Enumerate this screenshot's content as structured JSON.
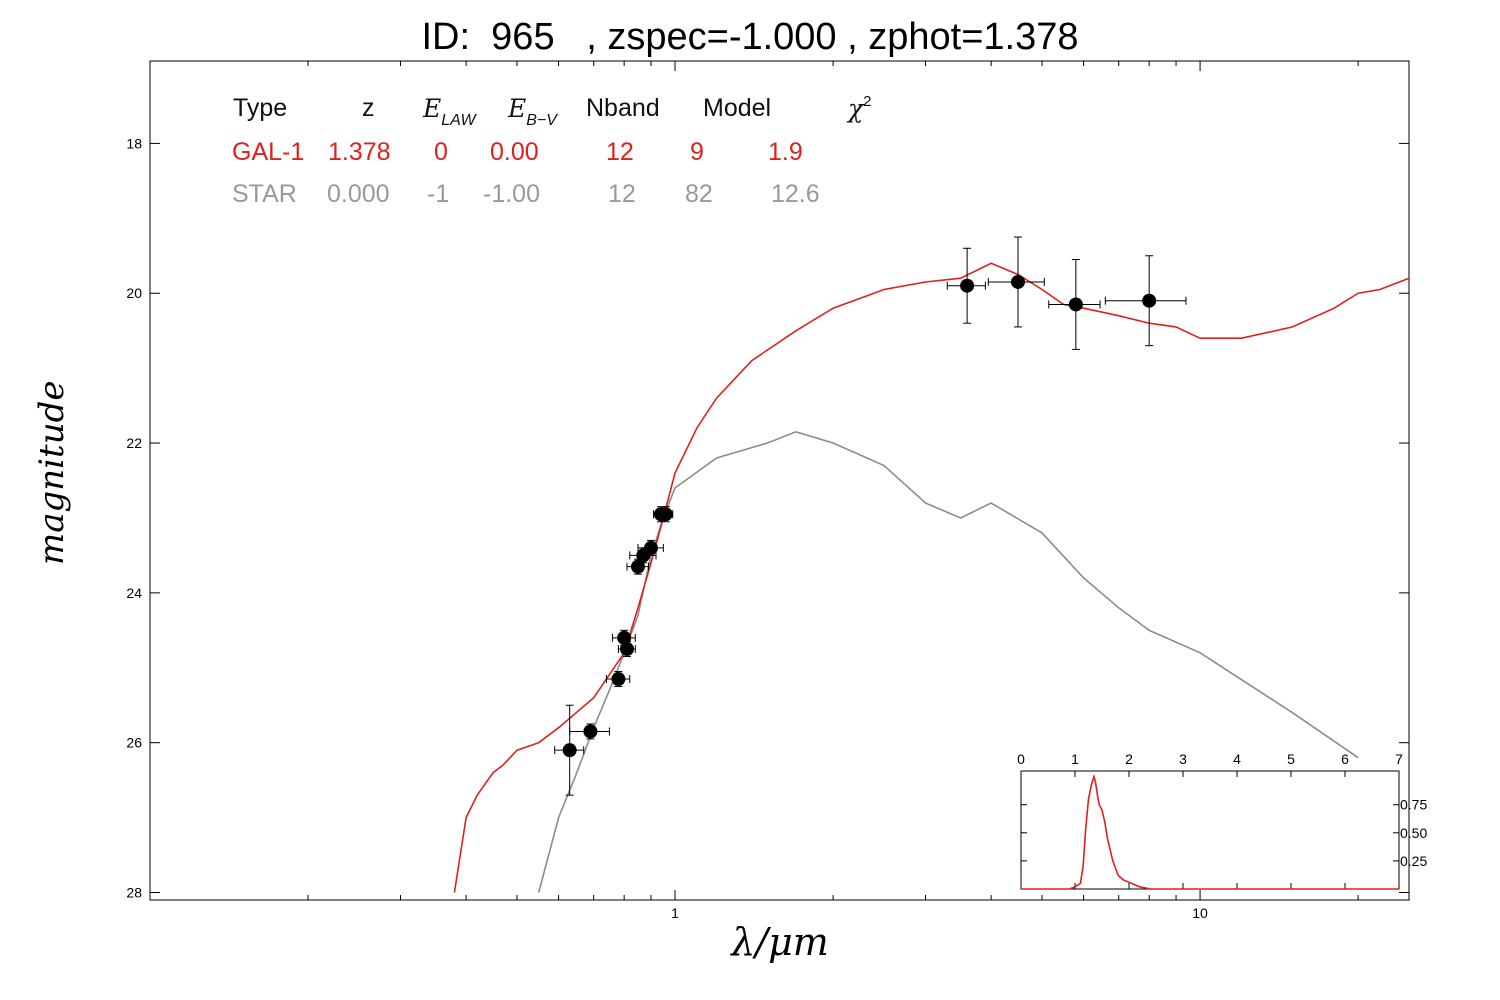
{
  "title": "ID:  965   , zspec=-1.000 , zphot=1.378",
  "table": {
    "headers": {
      "type": "Type",
      "z": "z",
      "elaw_main": "E",
      "elaw_sub": "LAW",
      "ebv_main": "E",
      "ebv_sub": "B−V",
      "nband": "Nband",
      "model": "Model",
      "chi_main": "χ",
      "chi_sup": "2"
    },
    "rows": [
      {
        "type": "GAL-1",
        "z": "1.378",
        "elaw": "0",
        "ebv": "0.00",
        "nband": "12",
        "model": "9",
        "chi2": "1.9"
      },
      {
        "type": "STAR",
        "z": "0.000",
        "elaw": "-1",
        "ebv": "-1.00",
        "nband": "12",
        "model": "82",
        "chi2": "12.6"
      }
    ]
  },
  "axes": {
    "ylabel": "magnitude",
    "xlabel": "λ/μm"
  },
  "colors": {
    "galaxy": "#e0201c",
    "star": "#8c8c8c",
    "points": "#000000"
  },
  "chart_data": [
    {
      "type": "line",
      "title": "ID:  965   , zspec=-1.000 , zphot=1.378",
      "xlabel": "λ/μm",
      "ylabel": "magnitude",
      "xscale": "log",
      "xlim": [
        0.1,
        25
      ],
      "ylim": [
        28.1,
        16.9
      ],
      "y_inverted": true,
      "xticks": [
        1,
        10
      ],
      "xtick_labels": [
        "1",
        "10"
      ],
      "yticks": [
        18,
        20,
        22,
        24,
        26,
        28
      ],
      "ytick_labels": [
        "18",
        "20",
        "22",
        "24",
        "26",
        "28"
      ],
      "series": [
        {
          "name": "GAL-1",
          "x": [
            0.38,
            0.4,
            0.42,
            0.45,
            0.47,
            0.5,
            0.55,
            0.6,
            0.7,
            0.8,
            0.85,
            0.9,
            0.95,
            1.0,
            1.1,
            1.2,
            1.4,
            1.7,
            2.0,
            2.5,
            3.0,
            3.5,
            4.0,
            4.5,
            5.0,
            5.5,
            6.0,
            7.0,
            8.0,
            9.0,
            10.0,
            12.0,
            15.0,
            18.0,
            20.0,
            22.0,
            25.0
          ],
          "y": [
            28.0,
            27.0,
            26.7,
            26.4,
            26.3,
            26.1,
            26.0,
            25.8,
            25.4,
            24.8,
            24.2,
            23.6,
            23.0,
            22.4,
            21.8,
            21.4,
            20.9,
            20.5,
            20.2,
            19.95,
            19.85,
            19.8,
            19.6,
            19.75,
            19.95,
            20.15,
            20.2,
            20.3,
            20.4,
            20.45,
            20.6,
            20.6,
            20.45,
            20.2,
            20.0,
            19.95,
            19.8
          ]
        },
        {
          "name": "STAR",
          "x": [
            0.55,
            0.6,
            0.65,
            0.7,
            0.75,
            0.8,
            0.85,
            0.9,
            0.95,
            1.0,
            1.2,
            1.5,
            1.7,
            2.0,
            2.5,
            3.0,
            3.5,
            4.0,
            5.0,
            6.0,
            7.0,
            8.0,
            10.0,
            15.0,
            20.0
          ],
          "y": [
            28.0,
            27.0,
            26.4,
            25.8,
            25.3,
            24.8,
            24.3,
            23.5,
            23.0,
            22.6,
            22.2,
            22.0,
            21.85,
            22.0,
            22.3,
            22.8,
            23.0,
            22.8,
            23.2,
            23.8,
            24.2,
            24.5,
            24.8,
            25.6,
            26.2
          ]
        }
      ],
      "points": {
        "x": [
          0.63,
          0.69,
          0.78,
          0.8,
          0.81,
          0.85,
          0.87,
          0.9,
          0.94,
          0.96,
          3.6,
          4.5,
          5.8,
          8.0
        ],
        "y": [
          26.1,
          25.85,
          25.15,
          24.6,
          24.75,
          23.65,
          23.5,
          23.4,
          22.95,
          22.95,
          19.9,
          19.85,
          20.15,
          20.1
        ],
        "xerr": [
          0.04,
          0.06,
          0.04,
          0.04,
          0.03,
          0.04,
          0.05,
          0.05,
          0.03,
          0.03,
          0.3,
          0.55,
          0.65,
          1.4
        ],
        "yerr": [
          0.6,
          0.1,
          0.1,
          0.1,
          0.1,
          0.1,
          0.1,
          0.1,
          0.1,
          0.1,
          0.5,
          0.6,
          0.6,
          0.6
        ]
      }
    },
    {
      "type": "line",
      "title": "",
      "xlim": [
        0,
        7
      ],
      "ylim": [
        0,
        1.05
      ],
      "xticks": [
        0,
        1,
        2,
        3,
        4,
        5,
        6,
        7
      ],
      "xtick_labels": [
        "0",
        "1",
        "2",
        "3",
        "4",
        "5",
        "6",
        "7"
      ],
      "yticks": [
        0.25,
        0.5,
        0.75
      ],
      "ytick_labels": [
        "0.25",
        "0.50",
        "0.75"
      ],
      "series": [
        {
          "x": [
            0,
            0.9,
            1.0,
            1.1,
            1.15,
            1.2,
            1.25,
            1.3,
            1.35,
            1.38,
            1.42,
            1.45,
            1.5,
            1.55,
            1.6,
            1.7,
            1.8,
            1.9,
            2.0,
            2.2,
            2.4,
            7.0
          ],
          "y": [
            0,
            0,
            0.02,
            0.05,
            0.2,
            0.55,
            0.8,
            0.92,
            1.0,
            0.95,
            0.82,
            0.75,
            0.7,
            0.6,
            0.45,
            0.25,
            0.12,
            0.08,
            0.06,
            0.02,
            0,
            0
          ]
        }
      ]
    }
  ]
}
